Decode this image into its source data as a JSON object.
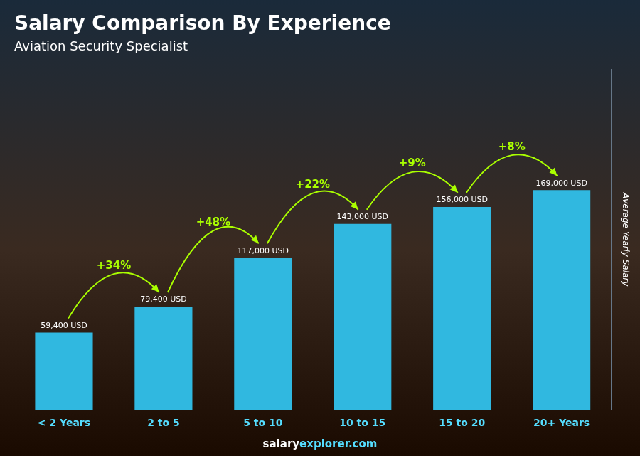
{
  "chart_data": {
    "type": "bar",
    "title": "Salary Comparison By Experience",
    "subtitle": "Aviation Security Specialist",
    "categories": [
      "< 2 Years",
      "2 to 5",
      "5 to 10",
      "10 to 15",
      "15 to 20",
      "20+ Years"
    ],
    "values": [
      59400,
      79400,
      117000,
      143000,
      156000,
      169000
    ],
    "value_labels": [
      "59,400 USD",
      "79,400 USD",
      "117,000 USD",
      "143,000 USD",
      "156,000 USD",
      "169,000 USD"
    ],
    "data_labels": true,
    "color": "#30b8e0",
    "ylabel": "Average Yearly Salary",
    "ylim": [
      0,
      261950
    ],
    "yticks": [],
    "tick_labels": "x",
    "grid": false,
    "text_color": "#ffffff",
    "tick_color": "#55ddff",
    "annotations": [
      {
        "text": "+34%",
        "color": "#aaff00"
      },
      {
        "text": "+48%",
        "color": "#aaff00"
      },
      {
        "text": "+22%",
        "color": "#aaff00"
      },
      {
        "text": "+9%",
        "color": "#aaff00"
      },
      {
        "text": "+8%",
        "color": "#aaff00"
      }
    ],
    "watermark": [
      {
        "text": "salary",
        "color": "#ffffff"
      },
      {
        "text": "explorer.com",
        "color": "#55ddff"
      }
    ]
  }
}
